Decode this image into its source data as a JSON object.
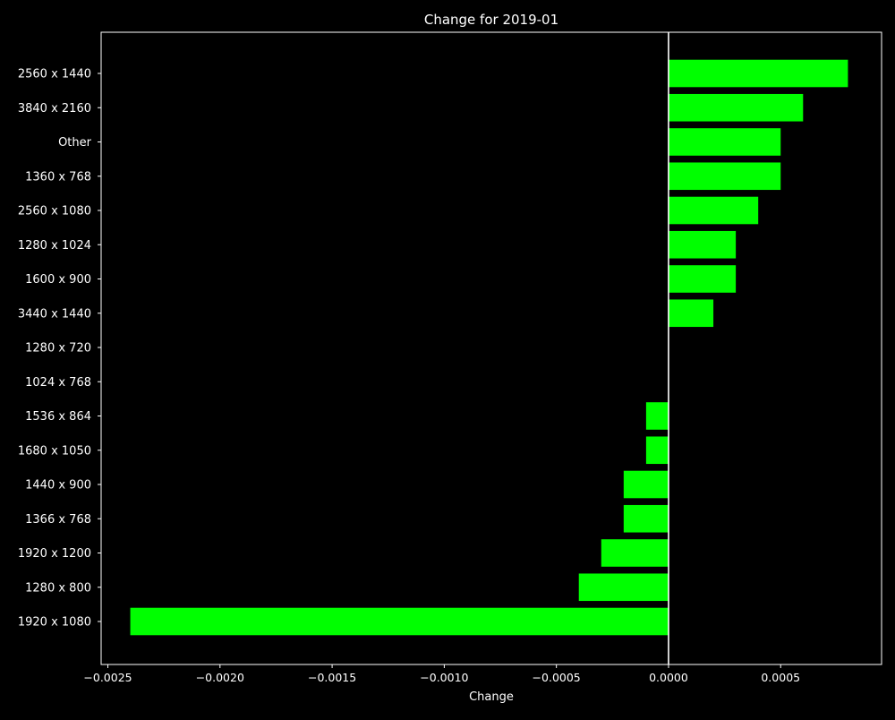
{
  "chart_data": {
    "type": "bar",
    "orientation": "horizontal",
    "title": "Change for 2019-01",
    "xlabel": "Change",
    "ylabel": "",
    "xlim": [
      -0.00253,
      0.00095
    ],
    "x_ticks": [
      -0.0025,
      -0.002,
      -0.0015,
      -0.001,
      -0.0005,
      0.0,
      0.0005
    ],
    "x_tick_labels": [
      "−0.0025",
      "−0.0020",
      "−0.0015",
      "−0.0010",
      "−0.0005",
      "0.0000",
      "0.0005"
    ],
    "categories": [
      "2560 x 1440",
      "3840 x 2160",
      "Other",
      "1360 x 768",
      "2560 x 1080",
      "1280 x 1024",
      "1600 x 900",
      "3440 x 1440",
      "1280 x 720",
      "1024 x 768",
      "1536 x 864",
      "1680 x 1050",
      "1440 x 900",
      "1366 x 768",
      "1920 x 1200",
      "1280 x 800",
      "1920 x 1080"
    ],
    "values": [
      0.0008,
      0.0006,
      0.0005,
      0.0005,
      0.0004,
      0.0003,
      0.0003,
      0.0002,
      0.0,
      0.0,
      -0.0001,
      -0.0001,
      -0.0002,
      -0.0002,
      -0.0003,
      -0.0004,
      -0.0024
    ],
    "grid": false,
    "zero_line": true,
    "colors": {
      "bar": "#00ff00",
      "background": "#000000",
      "foreground": "#ffffff"
    }
  }
}
